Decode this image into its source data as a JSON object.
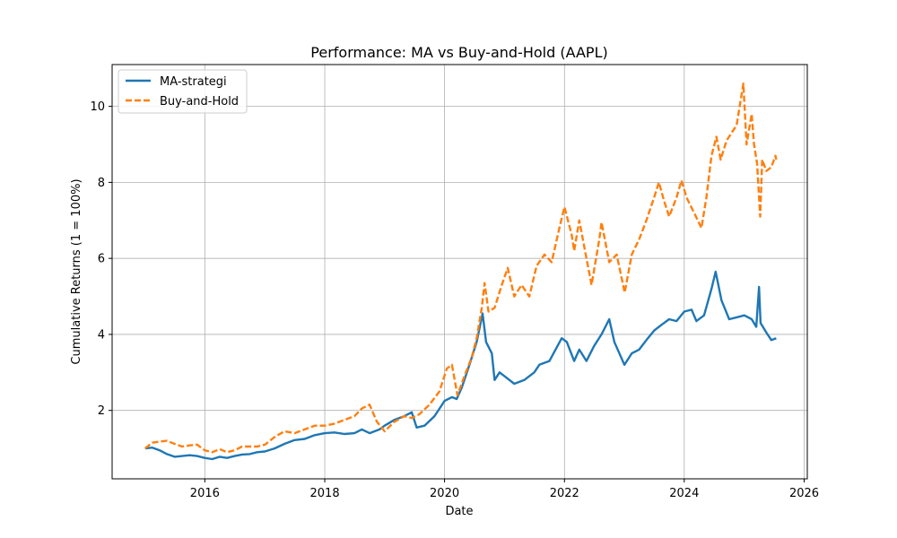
{
  "chart_data": {
    "type": "line",
    "title": "Performance: MA vs Buy-and-Hold (AAPL)",
    "xlabel": "Date",
    "ylabel": "Cumulative Returns (1 = 100%)",
    "x_tick_labels": [
      "2016",
      "2018",
      "2020",
      "2022",
      "2024",
      "2026"
    ],
    "x_tick_values": [
      "2016-01-01",
      "2018-01-01",
      "2020-01-01",
      "2022-01-01",
      "2024-01-01",
      "2026-01-01"
    ],
    "y_ticks": [
      2,
      4,
      6,
      8,
      10
    ],
    "xlim": [
      "2014-06-15",
      "2026-01-20"
    ],
    "ylim": [
      0.2,
      11.1
    ],
    "grid": true,
    "legend_position": "upper-left",
    "series": [
      {
        "name": "MA-strategi",
        "color": "#1f77b4",
        "linestyle": "solid",
        "points": [
          [
            "2015-01-02",
            1.0
          ],
          [
            "2015-02-15",
            1.02
          ],
          [
            "2015-04-01",
            0.95
          ],
          [
            "2015-05-15",
            0.85
          ],
          [
            "2015-07-01",
            0.78
          ],
          [
            "2015-08-15",
            0.8
          ],
          [
            "2015-10-01",
            0.82
          ],
          [
            "2015-11-15",
            0.8
          ],
          [
            "2016-01-01",
            0.75
          ],
          [
            "2016-02-15",
            0.72
          ],
          [
            "2016-04-01",
            0.78
          ],
          [
            "2016-05-15",
            0.75
          ],
          [
            "2016-07-01",
            0.8
          ],
          [
            "2016-08-15",
            0.84
          ],
          [
            "2016-10-01",
            0.85
          ],
          [
            "2016-11-15",
            0.9
          ],
          [
            "2017-01-01",
            0.92
          ],
          [
            "2017-03-01",
            1.0
          ],
          [
            "2017-05-01",
            1.12
          ],
          [
            "2017-07-01",
            1.22
          ],
          [
            "2017-09-01",
            1.25
          ],
          [
            "2017-11-01",
            1.35
          ],
          [
            "2018-01-01",
            1.4
          ],
          [
            "2018-03-01",
            1.42
          ],
          [
            "2018-05-01",
            1.38
          ],
          [
            "2018-07-01",
            1.4
          ],
          [
            "2018-08-15",
            1.5
          ],
          [
            "2018-10-01",
            1.4
          ],
          [
            "2018-12-01",
            1.5
          ],
          [
            "2019-01-01",
            1.6
          ],
          [
            "2019-03-01",
            1.75
          ],
          [
            "2019-05-01",
            1.85
          ],
          [
            "2019-06-15",
            1.95
          ],
          [
            "2019-07-15",
            1.55
          ],
          [
            "2019-09-01",
            1.6
          ],
          [
            "2019-11-01",
            1.85
          ],
          [
            "2020-01-01",
            2.25
          ],
          [
            "2020-02-15",
            2.35
          ],
          [
            "2020-03-15",
            2.3
          ],
          [
            "2020-04-15",
            2.6
          ],
          [
            "2020-06-01",
            3.2
          ],
          [
            "2020-07-15",
            3.8
          ],
          [
            "2020-08-20",
            4.55
          ],
          [
            "2020-09-10",
            3.8
          ],
          [
            "2020-10-15",
            3.5
          ],
          [
            "2020-11-01",
            2.8
          ],
          [
            "2020-12-01",
            3.0
          ],
          [
            "2021-01-01",
            2.9
          ],
          [
            "2021-03-01",
            2.7
          ],
          [
            "2021-05-01",
            2.8
          ],
          [
            "2021-07-01",
            3.0
          ],
          [
            "2021-08-01",
            3.2
          ],
          [
            "2021-10-01",
            3.3
          ],
          [
            "2021-12-15",
            3.9
          ],
          [
            "2022-01-15",
            3.8
          ],
          [
            "2022-03-01",
            3.3
          ],
          [
            "2022-04-01",
            3.6
          ],
          [
            "2022-05-15",
            3.3
          ],
          [
            "2022-07-01",
            3.7
          ],
          [
            "2022-08-15",
            4.0
          ],
          [
            "2022-10-01",
            4.4
          ],
          [
            "2022-11-01",
            3.8
          ],
          [
            "2023-01-01",
            3.2
          ],
          [
            "2023-02-15",
            3.5
          ],
          [
            "2023-04-01",
            3.6
          ],
          [
            "2023-05-15",
            3.85
          ],
          [
            "2023-07-01",
            4.1
          ],
          [
            "2023-08-15",
            4.25
          ],
          [
            "2023-10-01",
            4.4
          ],
          [
            "2023-11-15",
            4.35
          ],
          [
            "2024-01-01",
            4.6
          ],
          [
            "2024-02-15",
            4.65
          ],
          [
            "2024-03-15",
            4.35
          ],
          [
            "2024-05-01",
            4.5
          ],
          [
            "2024-06-15",
            5.2
          ],
          [
            "2024-07-10",
            5.65
          ],
          [
            "2024-08-15",
            4.9
          ],
          [
            "2024-10-01",
            4.4
          ],
          [
            "2024-11-15",
            4.45
          ],
          [
            "2025-01-01",
            4.5
          ],
          [
            "2025-02-15",
            4.4
          ],
          [
            "2025-03-15",
            4.2
          ],
          [
            "2025-04-01",
            5.25
          ],
          [
            "2025-04-10",
            4.3
          ],
          [
            "2025-05-15",
            4.05
          ],
          [
            "2025-06-15",
            3.85
          ],
          [
            "2025-07-15",
            3.9
          ]
        ]
      },
      {
        "name": "Buy-and-Hold",
        "color": "#ff7f0e",
        "linestyle": "dashed",
        "points": [
          [
            "2015-01-02",
            1.0
          ],
          [
            "2015-02-15",
            1.15
          ],
          [
            "2015-04-01",
            1.18
          ],
          [
            "2015-05-15",
            1.2
          ],
          [
            "2015-07-01",
            1.12
          ],
          [
            "2015-08-15",
            1.05
          ],
          [
            "2015-10-01",
            1.08
          ],
          [
            "2015-11-15",
            1.1
          ],
          [
            "2016-01-01",
            0.95
          ],
          [
            "2016-02-15",
            0.9
          ],
          [
            "2016-04-01",
            0.98
          ],
          [
            "2016-05-15",
            0.9
          ],
          [
            "2016-07-01",
            0.95
          ],
          [
            "2016-08-15",
            1.05
          ],
          [
            "2016-10-01",
            1.05
          ],
          [
            "2016-11-15",
            1.05
          ],
          [
            "2017-01-01",
            1.1
          ],
          [
            "2017-03-01",
            1.3
          ],
          [
            "2017-05-01",
            1.45
          ],
          [
            "2017-07-01",
            1.4
          ],
          [
            "2017-09-01",
            1.5
          ],
          [
            "2017-11-01",
            1.6
          ],
          [
            "2018-01-01",
            1.6
          ],
          [
            "2018-03-01",
            1.65
          ],
          [
            "2018-05-01",
            1.75
          ],
          [
            "2018-07-01",
            1.85
          ],
          [
            "2018-08-15",
            2.05
          ],
          [
            "2018-10-01",
            2.15
          ],
          [
            "2018-11-15",
            1.7
          ],
          [
            "2019-01-01",
            1.45
          ],
          [
            "2019-03-01",
            1.7
          ],
          [
            "2019-05-01",
            1.85
          ],
          [
            "2019-06-15",
            1.8
          ],
          [
            "2019-08-01",
            1.9
          ],
          [
            "2019-10-01",
            2.15
          ],
          [
            "2019-12-01",
            2.5
          ],
          [
            "2020-01-15",
            3.1
          ],
          [
            "2020-02-15",
            3.2
          ],
          [
            "2020-03-20",
            2.4
          ],
          [
            "2020-05-01",
            2.9
          ],
          [
            "2020-06-15",
            3.4
          ],
          [
            "2020-07-15",
            3.9
          ],
          [
            "2020-08-15",
            4.7
          ],
          [
            "2020-09-01",
            5.35
          ],
          [
            "2020-09-25",
            4.6
          ],
          [
            "2020-11-01",
            4.7
          ],
          [
            "2020-12-15",
            5.3
          ],
          [
            "2021-01-20",
            5.75
          ],
          [
            "2021-03-01",
            5.0
          ],
          [
            "2021-04-15",
            5.3
          ],
          [
            "2021-06-01",
            5.0
          ],
          [
            "2021-07-15",
            5.8
          ],
          [
            "2021-09-01",
            6.1
          ],
          [
            "2021-10-15",
            5.9
          ],
          [
            "2021-12-01",
            6.8
          ],
          [
            "2022-01-01",
            7.35
          ],
          [
            "2022-02-15",
            6.6
          ],
          [
            "2022-03-01",
            6.2
          ],
          [
            "2022-04-01",
            7.0
          ],
          [
            "2022-05-15",
            6.0
          ],
          [
            "2022-06-15",
            5.3
          ],
          [
            "2022-08-01",
            6.5
          ],
          [
            "2022-08-15",
            6.95
          ],
          [
            "2022-10-01",
            5.9
          ],
          [
            "2022-11-15",
            6.1
          ],
          [
            "2023-01-03",
            5.1
          ],
          [
            "2023-02-15",
            6.1
          ],
          [
            "2023-04-01",
            6.5
          ],
          [
            "2023-05-15",
            7.0
          ],
          [
            "2023-07-01",
            7.6
          ],
          [
            "2023-07-31",
            8.0
          ],
          [
            "2023-09-01",
            7.5
          ],
          [
            "2023-10-01",
            7.1
          ],
          [
            "2023-11-15",
            7.6
          ],
          [
            "2023-12-15",
            8.05
          ],
          [
            "2024-01-15",
            7.6
          ],
          [
            "2024-03-01",
            7.2
          ],
          [
            "2024-04-15",
            6.8
          ],
          [
            "2024-05-15",
            7.6
          ],
          [
            "2024-06-15",
            8.7
          ],
          [
            "2024-07-15",
            9.2
          ],
          [
            "2024-08-10",
            8.6
          ],
          [
            "2024-09-15",
            9.1
          ],
          [
            "2024-10-15",
            9.3
          ],
          [
            "2024-11-15",
            9.5
          ],
          [
            "2024-12-26",
            10.6
          ],
          [
            "2025-01-15",
            9.0
          ],
          [
            "2025-02-15",
            9.8
          ],
          [
            "2025-03-01",
            9.0
          ],
          [
            "2025-03-20",
            8.5
          ],
          [
            "2025-04-08",
            7.1
          ],
          [
            "2025-04-20",
            8.6
          ],
          [
            "2025-05-15",
            8.3
          ],
          [
            "2025-06-15",
            8.4
          ],
          [
            "2025-07-10",
            8.7
          ],
          [
            "2025-07-15",
            8.6
          ]
        ]
      }
    ]
  }
}
